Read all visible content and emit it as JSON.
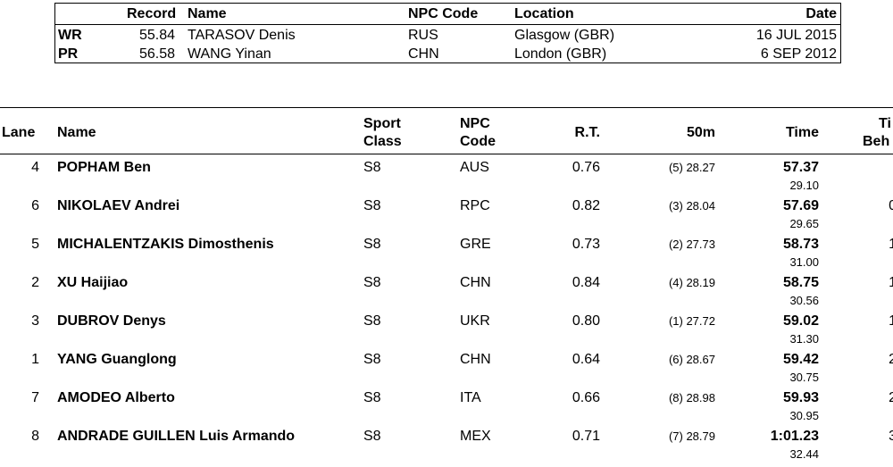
{
  "records": {
    "headers": {
      "record": "Record",
      "name": "Name",
      "npc": "NPC Code",
      "location": "Location",
      "date": "Date"
    },
    "rows": [
      {
        "type": "WR",
        "time": "55.84",
        "name": "TARASOV Denis",
        "npc": "RUS",
        "location": "Glasgow (GBR)",
        "date": "16 JUL 2015"
      },
      {
        "type": "PR",
        "time": "56.58",
        "name": "WANG Yinan",
        "npc": "CHN",
        "location": "London (GBR)",
        "date": "6 SEP 2012"
      }
    ]
  },
  "results": {
    "headers": {
      "lane": "Lane",
      "name": "Name",
      "sport_1": "Sport",
      "sport_2": "Class",
      "npc_1": "NPC",
      "npc_2": "Code",
      "rt": "R.T.",
      "split": "50m",
      "time": "Time",
      "tb_1": "Ti",
      "tb_2": "Beh"
    },
    "rows": [
      {
        "lane": "4",
        "name": "POPHAM Ben",
        "sport": "S8",
        "npc": "AUS",
        "rt": "0.76",
        "split": "(5) 28.27",
        "time": "57.37",
        "second": "29.10",
        "tb": ""
      },
      {
        "lane": "6",
        "name": "NIKOLAEV Andrei",
        "sport": "S8",
        "npc": "RPC",
        "rt": "0.82",
        "split": "(3) 28.04",
        "time": "57.69",
        "second": "29.65",
        "tb": "0"
      },
      {
        "lane": "5",
        "name": "MICHALENTZAKIS Dimosthenis",
        "sport": "S8",
        "npc": "GRE",
        "rt": "0.73",
        "split": "(2) 27.73",
        "time": "58.73",
        "second": "31.00",
        "tb": "1"
      },
      {
        "lane": "2",
        "name": "XU Haijiao",
        "sport": "S8",
        "npc": "CHN",
        "rt": "0.84",
        "split": "(4) 28.19",
        "time": "58.75",
        "second": "30.56",
        "tb": "1"
      },
      {
        "lane": "3",
        "name": "DUBROV Denys",
        "sport": "S8",
        "npc": "UKR",
        "rt": "0.80",
        "split": "(1) 27.72",
        "time": "59.02",
        "second": "31.30",
        "tb": "1"
      },
      {
        "lane": "1",
        "name": "YANG Guanglong",
        "sport": "S8",
        "npc": "CHN",
        "rt": "0.64",
        "split": "(6) 28.67",
        "time": "59.42",
        "second": "30.75",
        "tb": "2"
      },
      {
        "lane": "7",
        "name": "AMODEO Alberto",
        "sport": "S8",
        "npc": "ITA",
        "rt": "0.66",
        "split": "(8) 28.98",
        "time": "59.93",
        "second": "30.95",
        "tb": "2"
      },
      {
        "lane": "8",
        "name": "ANDRADE GUILLEN Luis Armando",
        "sport": "S8",
        "npc": "MEX",
        "rt": "0.71",
        "split": "(7) 28.79",
        "time": "1:01.23",
        "second": "32.44",
        "tb": "3"
      }
    ]
  }
}
